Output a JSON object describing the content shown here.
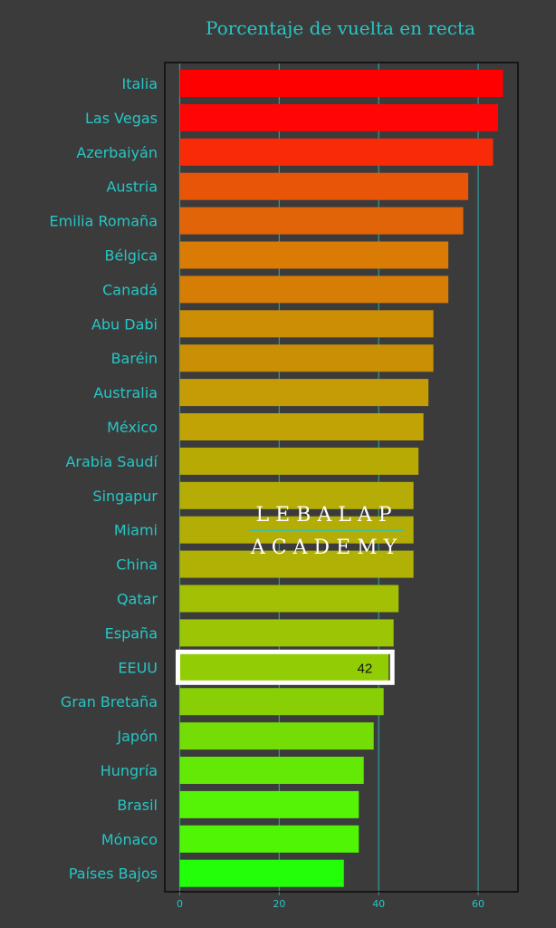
{
  "chart_data": {
    "type": "bar",
    "orientation": "horizontal",
    "title": "Porcentaje de vuelta en recta",
    "xlabel": "",
    "ylabel": "",
    "xlim": [
      -3,
      68
    ],
    "xticks": [
      0,
      20,
      40,
      60
    ],
    "grid": "vertical",
    "categories": [
      "Italia",
      "Las Vegas",
      "Azerbaiyán",
      "Austria",
      "Emilia Romaña",
      "Bélgica",
      "Canadá",
      "Abu Dabi",
      "Baréin",
      "Australia",
      "México",
      "Arabia Saudí",
      "Singapur",
      "Miami",
      "China",
      "Qatar",
      "España",
      "EEUU",
      "Gran Bretaña",
      "Japón",
      "Hungría",
      "Brasil",
      "Mónaco",
      "Países Bajos"
    ],
    "values": [
      65,
      64,
      63,
      58,
      57,
      54,
      54,
      51,
      51,
      50,
      49,
      48,
      47,
      47,
      47,
      44,
      43,
      42,
      41,
      39,
      37,
      36,
      36,
      33
    ],
    "colors": [
      "#ff0000",
      "#ff0505",
      "#f82a08",
      "#e85508",
      "#e26408",
      "#d97b05",
      "#d67d05",
      "#cc8e05",
      "#cb8f05",
      "#c59c05",
      "#c1a306",
      "#b8aa05",
      "#b5ac05",
      "#b3ad05",
      "#b0b005",
      "#a3c005",
      "#9cc505",
      "#92cc05",
      "#88d005",
      "#73dd05",
      "#63e905",
      "#55f305",
      "#50f405",
      "#22ff08"
    ],
    "highlight": {
      "category": "EEUU",
      "label": "42"
    }
  },
  "watermark": {
    "line1": "LEBALAP",
    "line2": "ACADEMY"
  },
  "colors": {
    "background": "#3b3b3b",
    "accent": "#26c6c6",
    "grid": "#2a9d9d"
  }
}
